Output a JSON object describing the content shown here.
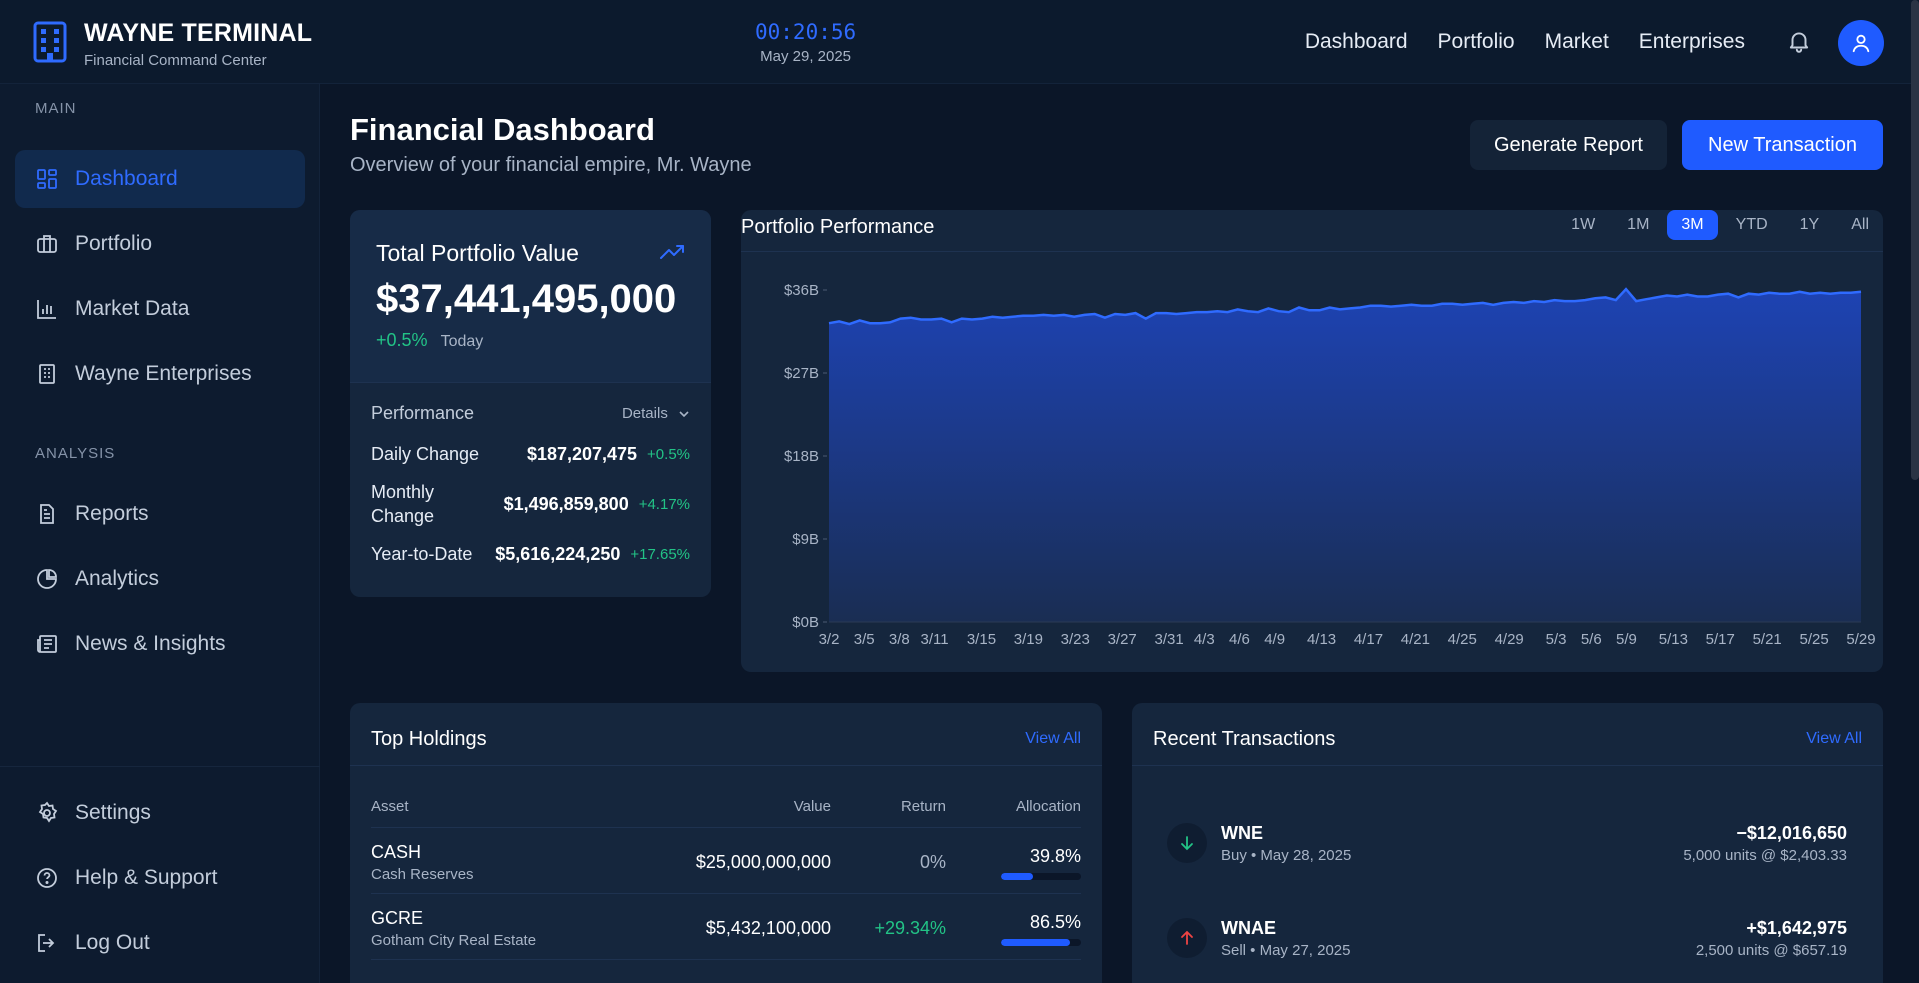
{
  "brand": {
    "title": "WAYNE TERMINAL",
    "subtitle": "Financial Command Center"
  },
  "clock": {
    "time": "00:20:56",
    "date": "May 29, 2025"
  },
  "topnav": {
    "items": [
      "Dashboard",
      "Portfolio",
      "Market",
      "Enterprises"
    ]
  },
  "sidebar": {
    "section_main": "MAIN",
    "section_analysis": "ANALYSIS",
    "items": [
      {
        "label": "Dashboard",
        "icon": "grid-icon",
        "active": true
      },
      {
        "label": "Portfolio",
        "icon": "briefcase-icon"
      },
      {
        "label": "Market Data",
        "icon": "bar-chart-icon"
      },
      {
        "label": "Wayne Enterprises",
        "icon": "building-icon"
      },
      {
        "label": "Reports",
        "icon": "document-icon"
      },
      {
        "label": "Analytics",
        "icon": "pie-chart-icon"
      },
      {
        "label": "News & Insights",
        "icon": "newspaper-icon"
      },
      {
        "label": "Settings",
        "icon": "gear-icon"
      },
      {
        "label": "Help & Support",
        "icon": "help-icon"
      },
      {
        "label": "Log Out",
        "icon": "logout-icon"
      }
    ]
  },
  "header": {
    "title": "Financial Dashboard",
    "subtitle": "Overview of your financial empire, Mr. Wayne",
    "report_button": "Generate Report",
    "transaction_button": "New Transaction"
  },
  "portfolio_value": {
    "label": "Total Portfolio Value",
    "value": "$37,441,495,000",
    "change": "+0.5%",
    "change_period": "Today",
    "performance_label": "Performance",
    "details_label": "Details",
    "rows": [
      {
        "label": "Daily Change",
        "value": "$187,207,475",
        "pct": "+0.5%"
      },
      {
        "label": "Monthly Change",
        "value": "$1,496,859,800",
        "pct": "+4.17%"
      },
      {
        "label": "Year-to-Date",
        "value": "$5,616,224,250",
        "pct": "+17.65%"
      }
    ]
  },
  "performance_chart": {
    "title": "Portfolio Performance",
    "ranges": [
      "1W",
      "1M",
      "3M",
      "YTD",
      "1Y",
      "All"
    ],
    "active_range": "3M"
  },
  "chart_data": {
    "type": "area",
    "title": "Portfolio Performance",
    "y_ticks": [
      "$0B",
      "$9B",
      "$18B",
      "$27B",
      "$36B"
    ],
    "ylim": [
      0,
      36
    ],
    "x_ticks": [
      "3/2",
      "3/5",
      "3/8",
      "3/11",
      "3/15",
      "3/19",
      "3/23",
      "3/27",
      "3/31",
      "4/3",
      "4/6",
      "4/9",
      "4/13",
      "4/17",
      "4/21",
      "4/25",
      "4/29",
      "5/3",
      "5/6",
      "5/9",
      "5/13",
      "5/17",
      "5/21",
      "5/25",
      "5/29"
    ],
    "values": [
      32.4,
      32.6,
      32.3,
      32.7,
      32.4,
      32.4,
      32.5,
      32.9,
      33.0,
      32.8,
      32.8,
      32.9,
      32.5,
      32.9,
      32.8,
      32.9,
      33.1,
      33.0,
      33.1,
      33.2,
      33.2,
      33.3,
      33.2,
      33.3,
      33.1,
      33.3,
      33.4,
      33.0,
      33.4,
      33.3,
      33.5,
      32.9,
      33.5,
      33.5,
      33.4,
      33.5,
      33.6,
      33.6,
      33.7,
      33.6,
      33.9,
      33.7,
      33.6,
      34.0,
      33.7,
      33.6,
      34.1,
      33.8,
      33.8,
      34.1,
      33.9,
      34.0,
      34.1,
      34.3,
      34.3,
      34.2,
      34.3,
      34.4,
      34.3,
      34.3,
      34.5,
      34.5,
      34.4,
      34.5,
      34.6,
      34.4,
      34.6,
      34.7,
      34.6,
      34.8,
      34.7,
      34.9,
      34.8,
      34.8,
      34.9,
      35.1,
      35.2,
      34.9,
      36.1,
      34.8,
      35.0,
      35.2,
      35.4,
      35.3,
      35.5,
      35.3,
      35.3,
      35.5,
      35.6,
      35.2,
      35.6,
      35.5,
      35.7,
      35.6,
      35.6,
      35.8,
      35.6,
      35.7,
      35.6,
      35.7,
      35.7,
      35.8
    ],
    "color": "#2f6bff"
  },
  "holdings": {
    "title": "Top Holdings",
    "view_all": "View All",
    "columns": [
      "Asset",
      "Value",
      "Return",
      "Allocation"
    ],
    "rows": [
      {
        "ticker": "CASH",
        "name": "Cash Reserves",
        "value": "$25,000,000,000",
        "return": "0%",
        "allocation": "39.8%",
        "allocation_frac": 0.398
      },
      {
        "ticker": "GCRE",
        "name": "Gotham City Real Estate",
        "value": "$5,432,100,000",
        "return": "+29.34%",
        "allocation": "86.5%",
        "allocation_frac": 0.865
      }
    ]
  },
  "transactions": {
    "title": "Recent Transactions",
    "view_all": "View All",
    "items": [
      {
        "ticker": "WNE",
        "meta": "Buy • May 28, 2025",
        "amount": "−$12,016,650",
        "units": "5,000 units @ $2,403.33",
        "direction": "down"
      },
      {
        "ticker": "WNAE",
        "meta": "Sell • May 27, 2025",
        "amount": "+$1,642,975",
        "units": "2,500 units @ $657.19",
        "direction": "up"
      }
    ]
  },
  "colors": {
    "accent": "#1f5bff",
    "positive": "#22c386",
    "negative": "#ef4444",
    "background": "#0b1628"
  }
}
